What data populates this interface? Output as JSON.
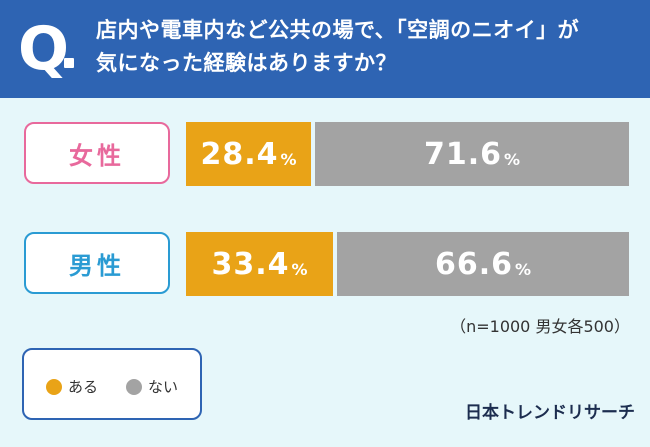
{
  "header": {
    "q_mark": "Q",
    "question_line1": "店内や電車内など公共の場で、「空調のニオイ」が",
    "question_line2": "気になった経験はありますか？"
  },
  "chart_data": {
    "type": "bar",
    "orientation": "horizontal-stacked-100",
    "categories": [
      "女性",
      "男性"
    ],
    "series": [
      {
        "name": "ある",
        "values": [
          28.4,
          33.4
        ],
        "color": "#e9a317"
      },
      {
        "name": "ない",
        "values": [
          71.6,
          66.6
        ],
        "color": "#a3a3a3"
      }
    ],
    "unit": "%",
    "legend_placement": "bottom-left"
  },
  "labels": {
    "female": "女性",
    "male": "男性"
  },
  "bars": {
    "female": {
      "yes": "28.4",
      "no": "71.6"
    },
    "male": {
      "yes": "33.4",
      "no": "66.6"
    },
    "pct": "%"
  },
  "note": "（n=1000 男女各500）",
  "legend": {
    "yes": "ある",
    "no": "ない"
  },
  "brand": "日本トレンドリサーチ",
  "colors": {
    "header": "#2e64b3",
    "background": "#e6f7fa",
    "female_accent": "#e8699c",
    "male_accent": "#2a9bd3",
    "yes": "#e9a317",
    "no": "#a3a3a3"
  }
}
